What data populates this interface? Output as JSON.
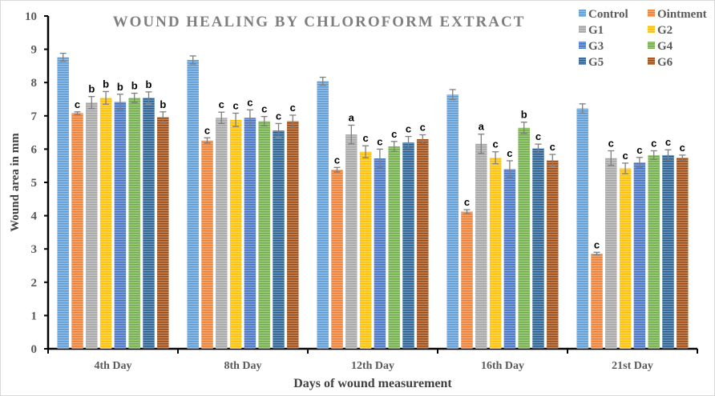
{
  "chart_data": {
    "type": "bar",
    "title": "WOUND HEALING  BY CHLOROFORM EXTRACT",
    "xlabel": "Days of wound measurement",
    "ylabel": "Wound area in mm",
    "ylim": [
      0,
      10
    ],
    "yticks": [
      0,
      1,
      2,
      3,
      4,
      5,
      6,
      7,
      8,
      9,
      10
    ],
    "grid": false,
    "legend_position": "top-right",
    "categories": [
      "4th Day",
      "8th Day",
      "12th Day",
      "16th Day",
      "21st Day"
    ],
    "series": [
      {
        "name": "Control",
        "color": "#5b9bd5",
        "values": [
          8.76,
          8.68,
          8.04,
          7.64,
          7.22
        ],
        "errors": [
          0.12,
          0.12,
          0.12,
          0.15,
          0.14
        ],
        "labels": [
          "",
          "",
          "",
          "",
          ""
        ]
      },
      {
        "name": "Ointment",
        "color": "#ed7d31",
        "values": [
          7.08,
          6.26,
          5.38,
          4.12,
          2.86
        ],
        "errors": [
          0.04,
          0.08,
          0.07,
          0.06,
          0.04
        ],
        "labels": [
          "c",
          "c",
          "c",
          "c",
          "c"
        ]
      },
      {
        "name": "G1",
        "color": "#a5a5a5",
        "values": [
          7.4,
          6.94,
          6.44,
          6.16,
          5.73
        ],
        "errors": [
          0.18,
          0.17,
          0.28,
          0.29,
          0.22
        ],
        "labels": [
          "b",
          "c",
          "a",
          "a",
          "c"
        ]
      },
      {
        "name": "G2",
        "color": "#ffc000",
        "values": [
          7.54,
          6.88,
          5.92,
          5.74,
          5.42
        ],
        "errors": [
          0.19,
          0.2,
          0.18,
          0.18,
          0.16
        ],
        "labels": [
          "b",
          "c",
          "c",
          "c",
          "c"
        ]
      },
      {
        "name": "G3",
        "color": "#4472c4",
        "values": [
          7.42,
          6.94,
          5.72,
          5.4,
          5.6
        ],
        "errors": [
          0.23,
          0.24,
          0.28,
          0.25,
          0.15
        ],
        "labels": [
          "b",
          "c",
          "c",
          "c",
          "c"
        ]
      },
      {
        "name": "G4",
        "color": "#70ad47",
        "values": [
          7.54,
          6.84,
          6.08,
          6.64,
          5.82
        ],
        "errors": [
          0.14,
          0.14,
          0.15,
          0.17,
          0.13
        ],
        "labels": [
          "b",
          "c",
          "c",
          "b",
          "c"
        ]
      },
      {
        "name": "G5",
        "color": "#255e91",
        "values": [
          7.54,
          6.56,
          6.2,
          6.02,
          5.82
        ],
        "errors": [
          0.18,
          0.21,
          0.18,
          0.13,
          0.16
        ],
        "labels": [
          "b",
          "c",
          "c",
          "c",
          "c"
        ]
      },
      {
        "name": "G6",
        "color": "#9e480e",
        "values": [
          6.96,
          6.84,
          6.3,
          5.66,
          5.74
        ],
        "errors": [
          0.16,
          0.18,
          0.13,
          0.18,
          0.08
        ],
        "labels": [
          "b",
          "c",
          "c",
          "c",
          "c"
        ]
      }
    ]
  }
}
